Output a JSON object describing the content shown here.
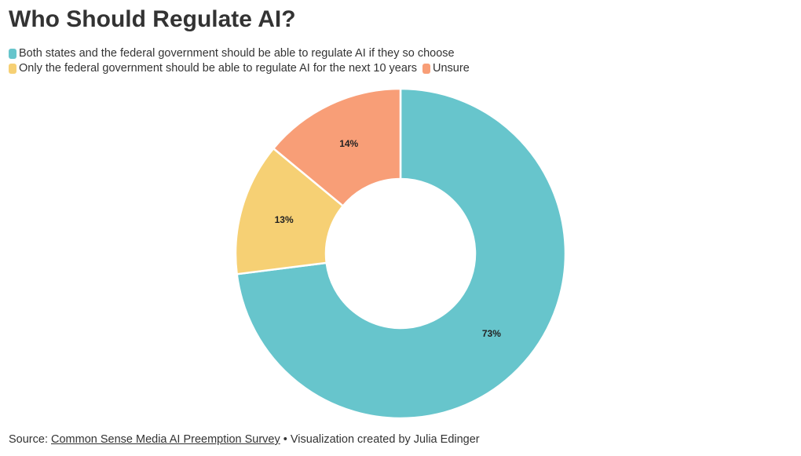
{
  "chart_data": {
    "type": "pie",
    "variant": "donut",
    "title": "Who Should Regulate AI?",
    "slices": [
      {
        "label": "Both states and the federal government should be able to regulate AI if they so choose",
        "value": 73,
        "display": "73%",
        "color": "#67C5CC"
      },
      {
        "label": "Only the federal government should be able to regulate AI for the next 10 years",
        "value": 13,
        "display": "13%",
        "color": "#F6D074"
      },
      {
        "label": "Unsure",
        "value": 14,
        "display": "14%",
        "color": "#F89E77"
      }
    ],
    "legend_position": "top-left"
  },
  "footer": {
    "source_prefix": "Source: ",
    "source_link": "Common Sense Media AI Preemption Survey",
    "credit": " • Visualization created by Julia Edinger"
  }
}
